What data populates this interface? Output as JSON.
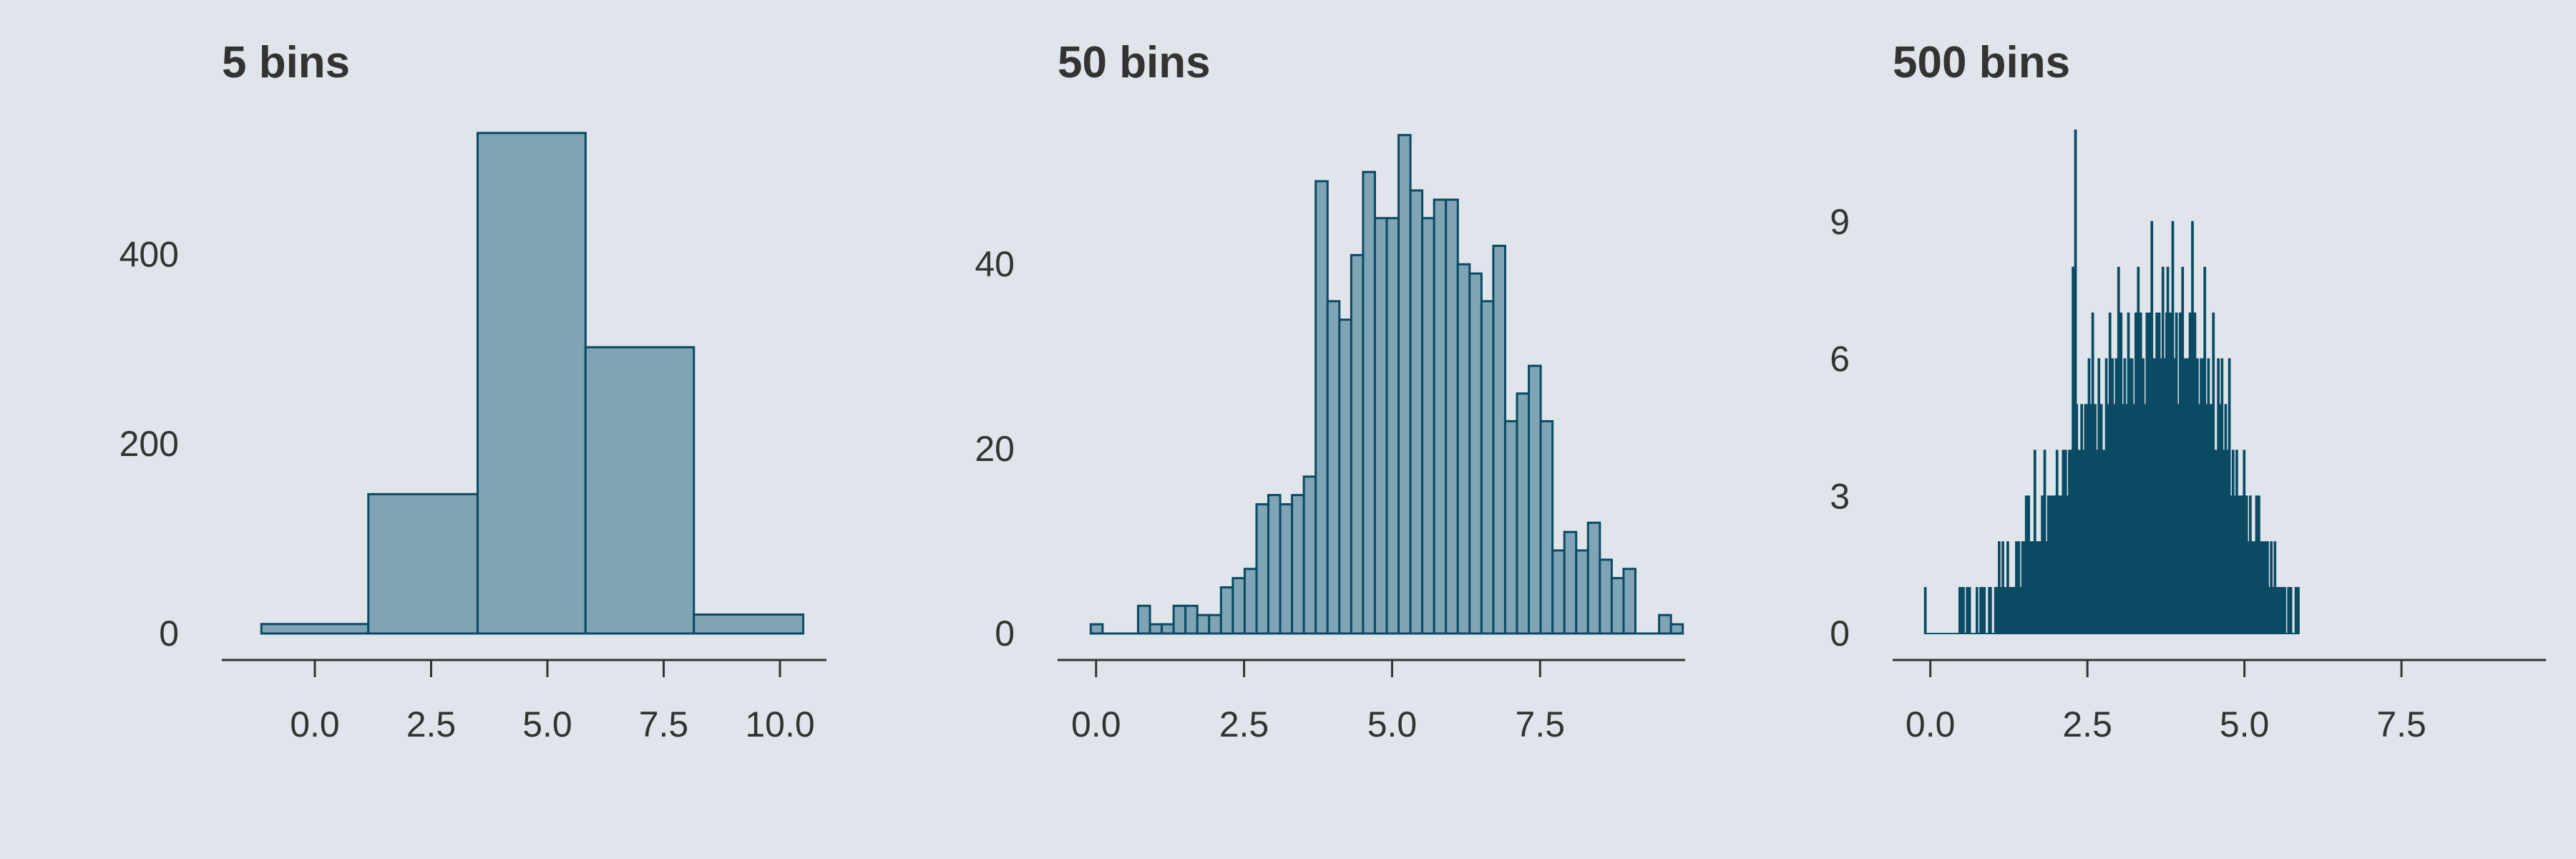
{
  "colors": {
    "background": "#dfe5eb",
    "fill_light": "#7fa4b6",
    "fill_dark": "#004d66",
    "stroke": "#0a4a62",
    "text": "#333333"
  },
  "chart_data": [
    {
      "type": "bar",
      "title": "5 bins",
      "xlabel": "",
      "ylabel": "",
      "xlim": [
        -2.0,
        11.0
      ],
      "ylim": [
        -15,
        555
      ],
      "xticks": [
        0.0,
        2.5,
        5.0,
        7.5,
        10.0
      ],
      "xtick_labels": [
        "0.0",
        "2.5",
        "5.0",
        "7.5",
        "10.0"
      ],
      "yticks": [
        0,
        200,
        400
      ],
      "ytick_labels": [
        "0",
        "200",
        "400"
      ],
      "bins": [
        {
          "x0": -1.15,
          "x1": 1.15,
          "count": 10
        },
        {
          "x0": 1.15,
          "x1": 3.5,
          "count": 147
        },
        {
          "x0": 3.5,
          "x1": 5.82,
          "count": 528
        },
        {
          "x0": 5.82,
          "x1": 8.15,
          "count": 302
        },
        {
          "x0": 8.15,
          "x1": 10.5,
          "count": 20
        }
      ]
    },
    {
      "type": "bar",
      "title": "50 bins",
      "xlabel": "",
      "ylabel": "",
      "bin_start": -0.09,
      "bin_width": 0.2,
      "xlim": [
        -0.65,
        9.95
      ],
      "ylim": [
        -2.5,
        57
      ],
      "xticks": [
        0.0,
        2.5,
        5.0,
        7.5
      ],
      "xtick_labels": [
        "0.0",
        "2.5",
        "5.0",
        "7.5"
      ],
      "yticks": [
        0,
        20,
        40
      ],
      "ytick_labels": [
        "0",
        "20",
        "40"
      ],
      "counts": [
        1,
        0,
        0,
        0,
        3,
        1,
        1,
        3,
        3,
        2,
        2,
        5,
        6,
        7,
        14,
        15,
        14,
        15,
        17,
        49,
        36,
        34,
        41,
        50,
        45,
        45,
        54,
        48,
        45,
        47,
        47,
        40,
        39,
        36,
        42,
        23,
        26,
        29,
        23,
        9,
        11,
        9,
        12,
        8,
        6,
        7,
        0,
        0,
        2,
        1
      ]
    },
    {
      "type": "bar",
      "title": "500 bins",
      "xlabel": "",
      "ylabel": "",
      "bin_start": -0.09,
      "bin_width": 0.0196,
      "xlim": [
        -0.6,
        9.8
      ],
      "ylim": [
        -0.5,
        11.5
      ],
      "xticks": [
        0.0,
        2.5,
        5.0,
        7.5
      ],
      "xtick_labels": [
        "0.0",
        "2.5",
        "5.0",
        "7.5"
      ],
      "yticks": [
        0,
        3,
        6,
        9
      ],
      "ytick_labels": [
        "0",
        "3",
        "6",
        "9"
      ],
      "counts": [
        1,
        0,
        0,
        0,
        0,
        0,
        0,
        0,
        0,
        0,
        0,
        0,
        0,
        0,
        0,
        0,
        0,
        0,
        0,
        0,
        0,
        0,
        0,
        0,
        0,
        0,
        0,
        0,
        1,
        0,
        1,
        1,
        0,
        0,
        1,
        0,
        1,
        0,
        0,
        0,
        0,
        0,
        1,
        0,
        0,
        1,
        1,
        0,
        1,
        0,
        0,
        0,
        1,
        1,
        0,
        0,
        0,
        1,
        1,
        0,
        2,
        0,
        1,
        2,
        1,
        0,
        1,
        2,
        1,
        1,
        1,
        1,
        1,
        1,
        2,
        1,
        2,
        1,
        1,
        2,
        2,
        1,
        3,
        2,
        3,
        2,
        1,
        2,
        2,
        4,
        2,
        2,
        1,
        2,
        2,
        3,
        2,
        4,
        2,
        2,
        3,
        2,
        3,
        1,
        3,
        3,
        3,
        4,
        2,
        3,
        2,
        3,
        4,
        3,
        4,
        2,
        3,
        4,
        2,
        4,
        8,
        5,
        11,
        5,
        3,
        4,
        2,
        5,
        3,
        4,
        5,
        4,
        5,
        6,
        2,
        5,
        7,
        3,
        5,
        3,
        4,
        6,
        3,
        5,
        4,
        2,
        4,
        6,
        5,
        3,
        7,
        4,
        6,
        4,
        5,
        6,
        4,
        8,
        5,
        7,
        5,
        5,
        6,
        4,
        5,
        7,
        5,
        6,
        6,
        5,
        5,
        7,
        6,
        8,
        3,
        7,
        4,
        6,
        5,
        4,
        7,
        6,
        7,
        5,
        9,
        6,
        6,
        4,
        7,
        6,
        7,
        6,
        4,
        8,
        6,
        3,
        7,
        8,
        7,
        5,
        7,
        9,
        5,
        6,
        7,
        5,
        4,
        7,
        6,
        8,
        4,
        6,
        5,
        6,
        3,
        7,
        6,
        9,
        4,
        7,
        5,
        6,
        4,
        5,
        6,
        6,
        4,
        8,
        3,
        5,
        6,
        5,
        3,
        5,
        7,
        4,
        4,
        2,
        6,
        5,
        3,
        6,
        2,
        4,
        5,
        3,
        4,
        6,
        2,
        3,
        4,
        3,
        2,
        4,
        2,
        3,
        1,
        3,
        2,
        4,
        2,
        3,
        2,
        1,
        3,
        2,
        2,
        1,
        2,
        3,
        1,
        3,
        2,
        1,
        2,
        1,
        2,
        1,
        2,
        1,
        1,
        2,
        1,
        1,
        2,
        1,
        1,
        1,
        0,
        1,
        1,
        0,
        1,
        0,
        0,
        1,
        0,
        1,
        0,
        0,
        0,
        1,
        0,
        1
      ]
    }
  ]
}
